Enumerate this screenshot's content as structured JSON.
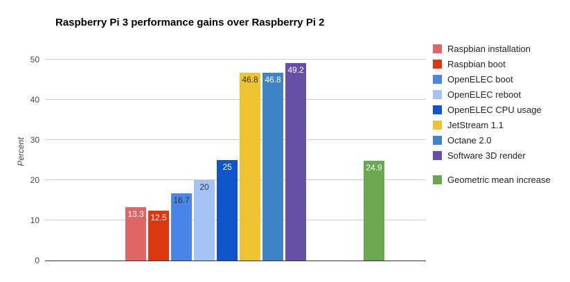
{
  "chart_data": {
    "type": "bar",
    "title": "Raspberry Pi 3 performance gains over Raspberry Pi 2",
    "ylabel": "Percent",
    "xlabel": "",
    "categories": [
      "Raspbian installation",
      "Raspbian boot",
      "OpenELEC boot",
      "OpenELEC reboot",
      "OpenELEC CPU usage",
      "JetStream 1.1",
      "Octane 2.0",
      "Software 3D render",
      "Geometric mean increase"
    ],
    "values": [
      13.3,
      12.5,
      16.7,
      20,
      25,
      46.8,
      46.8,
      49.2,
      24.9
    ],
    "colors": [
      "#e06666",
      "#dc3912",
      "#4a86e8",
      "#a4c2f4",
      "#1155cc",
      "#eec331",
      "#3d85c6",
      "#674ea7",
      "#6aa84f"
    ],
    "value_label_colors": [
      "#ffffff",
      "#ffffff",
      "#333333",
      "#333333",
      "#ffffff",
      "#333333",
      "#ffffff",
      "#ffffff",
      "#ffffff"
    ],
    "ylim": [
      0,
      50
    ],
    "yticks": [
      0,
      10,
      20,
      30,
      40,
      50
    ],
    "grid": true,
    "legend_position": "right",
    "last_bar_separated": true
  }
}
